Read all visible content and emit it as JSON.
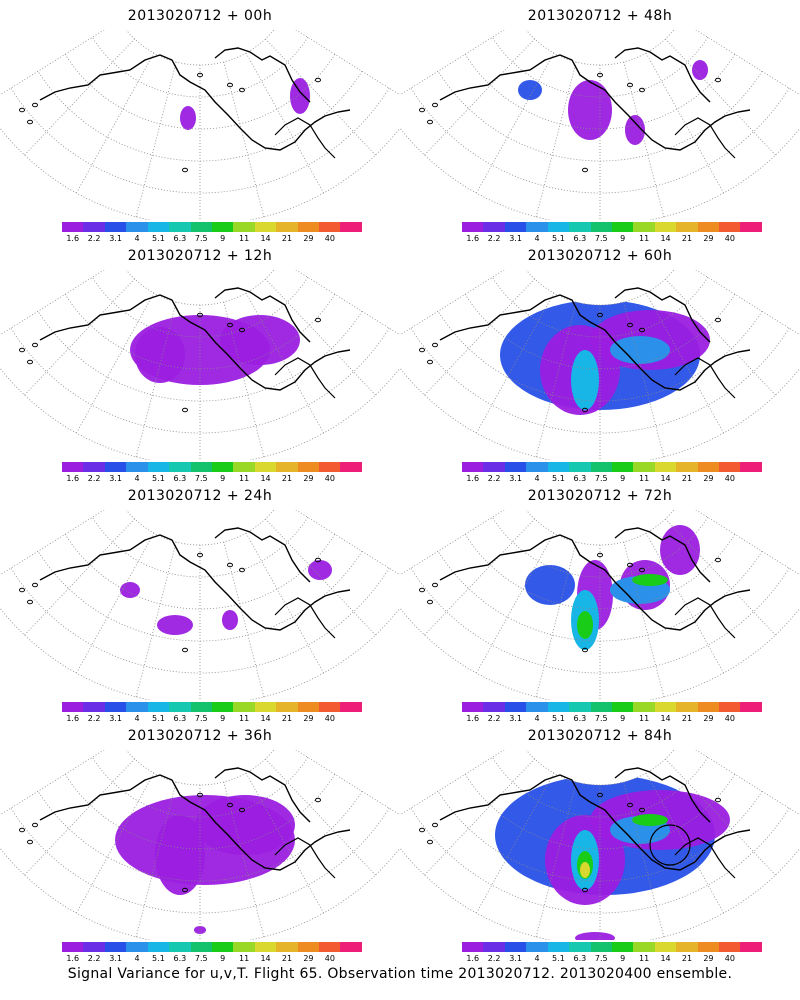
{
  "colorbar": {
    "colors": [
      "#9b1ee0",
      "#6a2ee6",
      "#2850e8",
      "#2a90ea",
      "#17b6e6",
      "#16c8b0",
      "#14c26e",
      "#18cc18",
      "#9ad828",
      "#d8d830",
      "#e6b428",
      "#ee8c22",
      "#f45a32",
      "#ee1e78"
    ],
    "labels": [
      "1.6",
      "2.2",
      "3.1",
      "4",
      "5.1",
      "6.3",
      "7.5",
      "9",
      "11",
      "14",
      "21",
      "29",
      "40"
    ]
  },
  "panels": [
    {
      "title": "2013020712 + 00h",
      "level": 0
    },
    {
      "title": "2013020712 + 48h",
      "level": 4
    },
    {
      "title": "2013020712 + 12h",
      "level": 1
    },
    {
      "title": "2013020712 + 60h",
      "level": 5
    },
    {
      "title": "2013020712 + 24h",
      "level": 2
    },
    {
      "title": "2013020712 + 72h",
      "level": 6
    },
    {
      "title": "2013020712 + 36h",
      "level": 3
    },
    {
      "title": "2013020712 + 84h",
      "level": 7
    }
  ],
  "footer": "Signal Variance for u,v,T. Flight 65. Observation time 2013020712. 2013020400 ensemble."
}
